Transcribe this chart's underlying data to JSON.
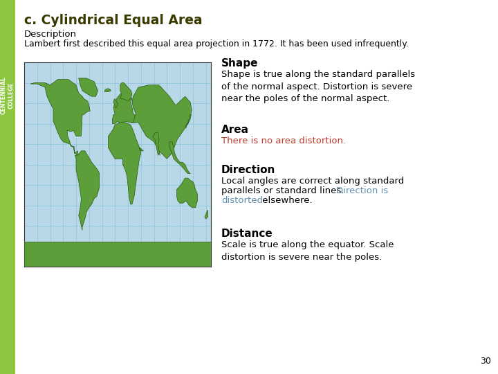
{
  "title": "c. Cylindrical Equal Area",
  "desc_label": "Description",
  "desc_text": "Lambert first described this equal area projection in 1772. It has been used infrequently.",
  "shape_label": "Shape",
  "shape_text": "Shape is true along the standard parallels\nof the normal aspect. Distortion is severe\nnear the poles of the normal aspect.",
  "area_label": "Area",
  "area_text_red": "There is no area distortion.",
  "direction_label": "Direction",
  "direction_line1": "Local angles are correct along standard",
  "direction_line2": "parallels or standard lines. ",
  "direction_colored": "Direction is",
  "direction_colored2": "distorted",
  "direction_end": " elsewhere.",
  "distance_label": "Distance",
  "distance_text": "Scale is true along the equator. Scale\ndistortion is severe near the poles.",
  "page_number": "30",
  "bg_color": "#ffffff",
  "sidebar_color": "#8dc63f",
  "title_color": "#3a3a00",
  "red_color": "#c0392b",
  "blue_color": "#6090b0",
  "map_ocean": "#b8d8e8",
  "map_land": "#5c9e3a",
  "map_land_edge": "#2a5a10",
  "map_grid": "#7ec0d8",
  "map_border": "#333333"
}
